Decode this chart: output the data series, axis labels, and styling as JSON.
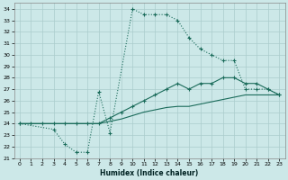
{
  "xlabel": "Humidex (Indice chaleur)",
  "bg_color": "#cce8e8",
  "grid_color": "#aacccc",
  "line_color": "#1a6b5a",
  "ylim": [
    21,
    34.5
  ],
  "xlim": [
    -0.5,
    23.5
  ],
  "yticks": [
    21,
    22,
    23,
    24,
    25,
    26,
    27,
    28,
    29,
    30,
    31,
    32,
    33,
    34
  ],
  "xticks": [
    0,
    1,
    2,
    3,
    4,
    5,
    6,
    7,
    8,
    9,
    10,
    11,
    12,
    13,
    14,
    15,
    16,
    17,
    18,
    19,
    20,
    21,
    22,
    23
  ],
  "curve1_x": [
    0,
    3,
    4,
    5,
    6,
    7,
    8,
    10,
    11,
    12,
    13,
    14,
    15,
    16,
    17,
    18,
    19,
    20,
    21,
    22,
    23
  ],
  "curve1_y": [
    24,
    23.5,
    22.2,
    21.5,
    21.5,
    26.8,
    23.2,
    34.0,
    33.5,
    33.5,
    33.5,
    33.0,
    31.5,
    30.5,
    30.0,
    29.5,
    29.5,
    27.0,
    27.0,
    27.0,
    26.5
  ],
  "curve2_x": [
    0,
    1,
    2,
    3,
    4,
    5,
    6,
    7,
    8,
    9,
    10,
    11,
    12,
    13,
    14,
    15,
    16,
    17,
    18,
    19,
    20,
    21,
    22,
    23
  ],
  "curve2_y": [
    24,
    24,
    24,
    24,
    24,
    24,
    24,
    24,
    24.5,
    25,
    25.5,
    26.0,
    26.5,
    27.0,
    27.5,
    27.0,
    27.5,
    27.5,
    28.0,
    28.0,
    27.5,
    27.5,
    27.0,
    26.5
  ],
  "curve3_x": [
    0,
    1,
    2,
    3,
    4,
    5,
    6,
    7,
    8,
    9,
    10,
    11,
    12,
    13,
    14,
    15,
    16,
    17,
    18,
    19,
    20,
    21,
    22,
    23
  ],
  "curve3_y": [
    24,
    24,
    24,
    24,
    24,
    24,
    24,
    24,
    24.2,
    24.4,
    24.7,
    25.0,
    25.2,
    25.4,
    25.5,
    25.5,
    25.7,
    25.9,
    26.1,
    26.3,
    26.5,
    26.5,
    26.5,
    26.5
  ]
}
